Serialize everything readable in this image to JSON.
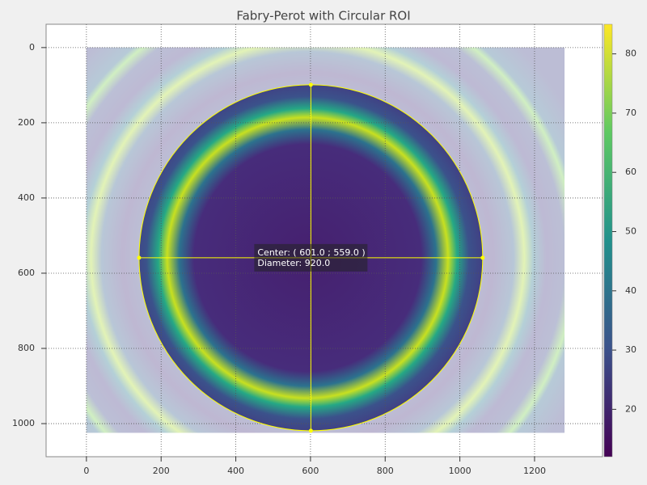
{
  "chart_data": {
    "type": "image",
    "title": "Fabry-Perot with Circular ROI",
    "image_size": [
      1280,
      1024
    ],
    "xlim": [
      -108,
      1382
    ],
    "xticks": [
      0,
      200,
      400,
      600,
      800,
      1000,
      1200
    ],
    "ylim": [
      1088,
      -62
    ],
    "yticks": [
      0,
      200,
      400,
      600,
      800,
      1000
    ],
    "grid": true,
    "colorbar": {
      "clim": [
        12,
        85
      ],
      "ticks": [
        20,
        30,
        40,
        50,
        60,
        70,
        80
      ],
      "colormap": "viridis"
    },
    "roi": {
      "center": [
        601,
        559
      ],
      "diameter": 920,
      "color": "#ffff00",
      "label_lines": [
        "Center: ( 601.0 ; 559.0 )",
        "Diameter: 920.0"
      ]
    }
  }
}
